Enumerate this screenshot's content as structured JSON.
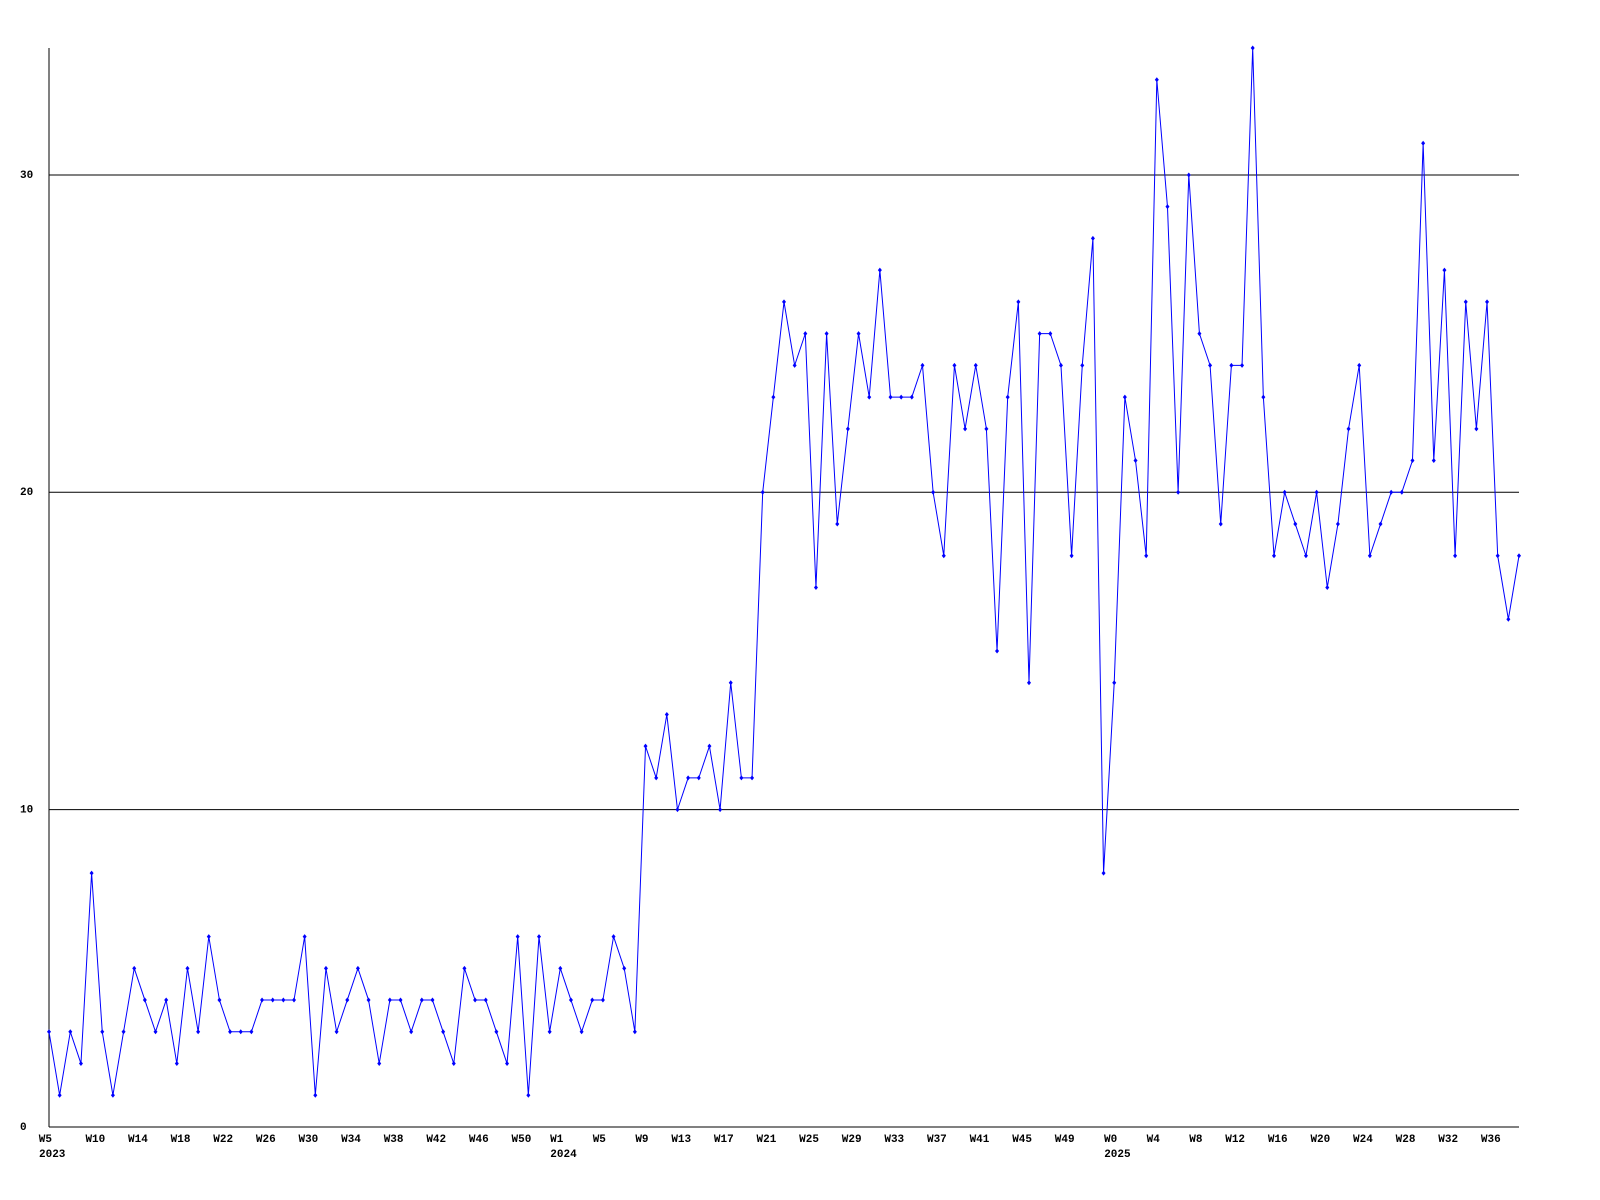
{
  "chart_data": {
    "type": "line",
    "categories": [
      "W5",
      null,
      null,
      null,
      null,
      "W10",
      null,
      null,
      null,
      "W14",
      null,
      null,
      null,
      "W18",
      null,
      null,
      null,
      "W22",
      null,
      null,
      null,
      "W26",
      null,
      null,
      null,
      "W30",
      null,
      null,
      null,
      "W34",
      null,
      null,
      null,
      "W38",
      null,
      null,
      null,
      "W42",
      null,
      null,
      null,
      "W46",
      null,
      null,
      null,
      "W50",
      null,
      null,
      "W1",
      null,
      null,
      null,
      "W5",
      null,
      null,
      null,
      "W9",
      null,
      null,
      null,
      "W13",
      null,
      null,
      null,
      "W17",
      null,
      null,
      null,
      "W21",
      null,
      null,
      null,
      "W25",
      null,
      null,
      null,
      "W29",
      null,
      null,
      null,
      "W33",
      null,
      null,
      null,
      "W37",
      null,
      null,
      null,
      "W41",
      null,
      null,
      null,
      "W45",
      null,
      null,
      null,
      "W49",
      null,
      null,
      null,
      "W0",
      null,
      null,
      null,
      "W4",
      null,
      null,
      null,
      "W8",
      null,
      null,
      null,
      "W12",
      null,
      null,
      null,
      "W16",
      null,
      null,
      null,
      "W20",
      null,
      null,
      null,
      "W24",
      null,
      null,
      null,
      "W28",
      null,
      null,
      null,
      "W32",
      null,
      null,
      null,
      "W36",
      null,
      null
    ],
    "years": [
      "2023",
      null,
      null,
      null,
      null,
      null,
      null,
      null,
      null,
      null,
      null,
      null,
      null,
      null,
      null,
      null,
      null,
      null,
      null,
      null,
      null,
      null,
      null,
      null,
      null,
      null,
      null,
      null,
      null,
      null,
      null,
      null,
      null,
      null,
      null,
      null,
      null,
      null,
      null,
      null,
      null,
      null,
      null,
      null,
      null,
      null,
      null,
      null,
      "2024",
      null,
      null,
      null,
      null,
      null,
      null,
      null,
      null,
      null,
      null,
      null,
      null,
      null,
      null,
      null,
      null,
      null,
      null,
      null,
      null,
      null,
      null,
      null,
      null,
      null,
      null,
      null,
      null,
      null,
      null,
      null,
      null,
      null,
      null,
      null,
      null,
      null,
      null,
      null,
      null,
      null,
      null,
      null,
      null,
      null,
      null,
      null,
      null,
      null,
      null,
      null,
      "2025",
      null,
      null,
      null,
      null,
      null,
      null,
      null,
      null,
      null,
      null,
      null,
      null,
      null,
      null,
      null,
      null,
      null,
      null,
      null,
      null,
      null,
      null,
      null,
      null,
      null,
      null,
      null,
      null,
      null,
      null,
      null,
      null,
      null,
      null,
      null,
      null,
      null,
      null
    ],
    "series": [
      {
        "color": "#0000ff",
        "values": [
          3,
          1,
          3,
          2,
          8,
          3,
          1,
          3,
          5,
          4,
          3,
          4,
          2,
          5,
          3,
          6,
          4,
          3,
          3,
          3,
          4,
          4,
          4,
          4,
          6,
          1,
          5,
          3,
          4,
          5,
          4,
          2,
          4,
          4,
          3,
          4,
          4,
          3,
          2,
          5,
          4,
          4,
          3,
          2,
          6,
          1,
          6,
          3,
          5,
          4,
          3,
          4,
          4,
          6,
          5,
          3,
          12,
          11,
          13,
          10,
          11,
          11,
          12,
          10,
          14,
          11,
          11,
          20,
          23,
          26,
          24,
          25,
          17,
          25,
          19,
          22,
          25,
          23,
          27,
          23,
          23,
          23,
          24,
          20,
          18,
          24,
          22,
          24,
          22,
          15,
          23,
          26,
          14,
          25,
          25,
          24,
          18,
          24,
          28,
          8,
          14,
          23,
          21,
          18,
          33,
          29,
          20,
          30,
          25,
          24,
          19,
          24,
          24,
          34,
          23,
          18,
          20,
          19,
          18,
          20,
          17,
          19,
          22,
          24,
          18,
          19,
          20,
          20,
          21,
          31,
          21,
          27,
          18,
          26,
          22,
          26,
          18,
          16,
          18
        ]
      }
    ],
    "ylim": [
      0,
      34
    ],
    "yticks": [
      0,
      10,
      20,
      30
    ],
    "grid": true
  }
}
